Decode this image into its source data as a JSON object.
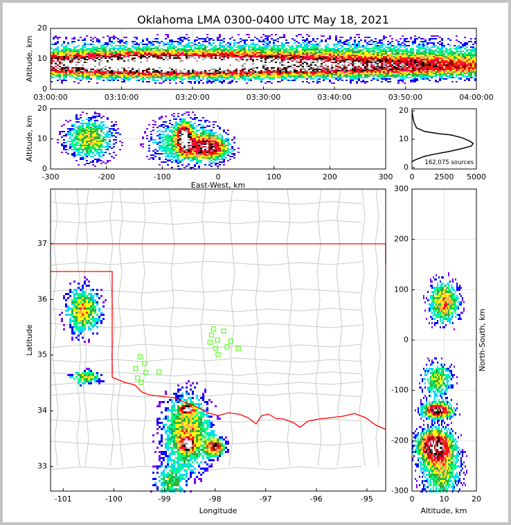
{
  "title": "Oklahoma LMA 0300-0400 UTC May 18, 2021",
  "colormap": [
    "#7a00ff",
    "#0000ff",
    "#00d8ff",
    "#00ff80",
    "#30b040",
    "#ffff00",
    "#ffb050",
    "#ff2000",
    "#ff0050",
    "#b00000",
    "#000000",
    "#a0a0a0",
    "#ffffff"
  ],
  "border_color": "#ff0000",
  "county_color": "#c8c8c8",
  "station_color": "#66ff33",
  "chart_data": [
    {
      "id": "time_altitude",
      "type": "heatmap",
      "ylabel": "Altitude, km",
      "xlim": [
        0,
        60
      ],
      "ylim": [
        0,
        20
      ],
      "xticks": [
        0,
        10,
        20,
        30,
        40,
        50,
        60
      ],
      "xticklabels": [
        "03:00:00",
        "03:10:00",
        "03:20:00",
        "03:30:00",
        "03:40:00",
        "03:50:00",
        "04:00:00"
      ],
      "yticks": [
        0,
        10,
        20
      ],
      "yticklabels": [
        "0",
        "10",
        "20"
      ],
      "density_blobs": [
        {
          "x": 12,
          "y": 8,
          "sx": 16,
          "sy": 2.4,
          "w": 1.15
        },
        {
          "x": 45,
          "y": 7.5,
          "sx": 20,
          "sy": 2.3,
          "w": 0.7
        },
        {
          "x": 30,
          "y": 11,
          "sx": 40,
          "sy": 3.8,
          "w": 0.35
        }
      ]
    },
    {
      "id": "eastwest_altitude",
      "type": "heatmap",
      "xlabel": "East-West, km",
      "ylabel": "Altitude, km",
      "xlim": [
        -300,
        300
      ],
      "ylim": [
        0,
        20
      ],
      "xticks": [
        -300,
        -200,
        -100,
        0,
        100,
        200,
        300
      ],
      "xticklabels": [
        "-300",
        "-200",
        "-100",
        "0",
        "100",
        "200",
        "300"
      ],
      "yticks": [
        0,
        10,
        20
      ],
      "yticklabels": [
        "0",
        "10",
        "20"
      ],
      "density_blobs": [
        {
          "x": -230,
          "y": 10,
          "sx": 28,
          "sy": 4.5,
          "w": 0.55
        },
        {
          "x": -60,
          "y": 10,
          "sx": 8,
          "sy": 3,
          "w": 1.1
        },
        {
          "x": -15,
          "y": 7,
          "sx": 22,
          "sy": 2.5,
          "w": 0.85
        },
        {
          "x": -60,
          "y": 9,
          "sx": 40,
          "sy": 5,
          "w": 0.45
        }
      ]
    },
    {
      "id": "altitude_histogram",
      "type": "line",
      "xlim": [
        0,
        5000
      ],
      "ylim": [
        0,
        20
      ],
      "xticks": [
        0,
        2500,
        5000
      ],
      "xticklabels": [
        "0",
        "2500",
        "5000"
      ],
      "yticks": [
        0,
        10,
        20
      ],
      "yticklabels": [
        "0",
        "10",
        "20"
      ],
      "annotation": "162,075 sources",
      "x": [
        0,
        60,
        150,
        350,
        1000,
        2000,
        3000,
        3900,
        4500,
        4750,
        4600,
        3800,
        2800,
        1800,
        1000,
        400,
        100,
        0
      ],
      "y": [
        20,
        18,
        16,
        14,
        12.7,
        12,
        11.5,
        10.5,
        9.3,
        8.5,
        7.6,
        6.6,
        5.6,
        4.8,
        4,
        3,
        2.4,
        2
      ]
    },
    {
      "id": "plan_view",
      "type": "heatmap",
      "xlabel": "Longitude",
      "ylabel": "Latitude",
      "xlim": [
        -101.25,
        -94.63
      ],
      "ylim": [
        32.56,
        37.98
      ],
      "xticks": [
        -101,
        -100,
        -99,
        -98,
        -97,
        -96,
        -95
      ],
      "xticklabels": [
        "-101",
        "-100",
        "-99",
        "-98",
        "-97",
        "-96",
        "-95"
      ],
      "yticks": [
        33,
        34,
        35,
        36,
        37
      ],
      "yticklabels": [
        "33",
        "34",
        "35",
        "36",
        "37"
      ],
      "density_blobs": [
        {
          "x": -100.6,
          "y": 35.8,
          "sx": 0.22,
          "sy": 0.28,
          "w": 0.6
        },
        {
          "x": -100.55,
          "y": 34.6,
          "sx": 0.2,
          "sy": 0.08,
          "w": 0.55
        },
        {
          "x": -98.55,
          "y": 33.6,
          "sx": 0.32,
          "sy": 0.45,
          "w": 0.6
        },
        {
          "x": -98.55,
          "y": 34.03,
          "sx": 0.1,
          "sy": 0.05,
          "w": 0.95
        },
        {
          "x": -98.55,
          "y": 33.4,
          "sx": 0.09,
          "sy": 0.07,
          "w": 0.9
        },
        {
          "x": -98.0,
          "y": 33.35,
          "sx": 0.12,
          "sy": 0.1,
          "w": 0.8
        },
        {
          "x": -98.9,
          "y": 32.7,
          "sx": 0.2,
          "sy": 0.2,
          "w": 0.4
        }
      ],
      "stations": [
        [
          -98.03,
          35.47
        ],
        [
          -97.83,
          35.43
        ],
        [
          -98.07,
          35.36
        ],
        [
          -97.95,
          35.27
        ],
        [
          -98.1,
          35.23
        ],
        [
          -97.69,
          35.25
        ],
        [
          -97.99,
          35.12
        ],
        [
          -97.76,
          35.15
        ],
        [
          -97.54,
          35.12
        ],
        [
          -97.94,
          35.01
        ],
        [
          -99.48,
          34.97
        ],
        [
          -99.39,
          34.85
        ],
        [
          -99.57,
          34.76
        ],
        [
          -99.37,
          34.69
        ],
        [
          -99.11,
          34.7
        ],
        [
          -99.53,
          34.59
        ],
        [
          -99.46,
          34.51
        ]
      ]
    },
    {
      "id": "altitude_northsouth",
      "type": "heatmap",
      "xlabel": "Altitude, km",
      "ylabel": "North-South, km",
      "xlim": [
        0,
        20
      ],
      "ylim": [
        -300,
        300
      ],
      "xticks": [
        0,
        10,
        20
      ],
      "xticklabels": [
        "0",
        "10",
        "20"
      ],
      "yticks": [
        -300,
        -200,
        -100,
        0,
        100,
        200,
        300
      ],
      "yticklabels": [
        "-300",
        "-200",
        "-100",
        "0",
        "100",
        "200",
        "300"
      ],
      "density_blobs": [
        {
          "x": 10,
          "y": 75,
          "sx": 3,
          "sy": 28,
          "w": 0.65
        },
        {
          "x": 8,
          "y": -80,
          "sx": 3,
          "sy": 25,
          "w": 0.5
        },
        {
          "x": 8,
          "y": -140,
          "sx": 3,
          "sy": 10,
          "w": 1.1
        },
        {
          "x": 7,
          "y": -210,
          "sx": 3.5,
          "sy": 20,
          "w": 1.0
        },
        {
          "x": 9,
          "y": -260,
          "sx": 4,
          "sy": 40,
          "w": 0.5
        }
      ]
    }
  ]
}
